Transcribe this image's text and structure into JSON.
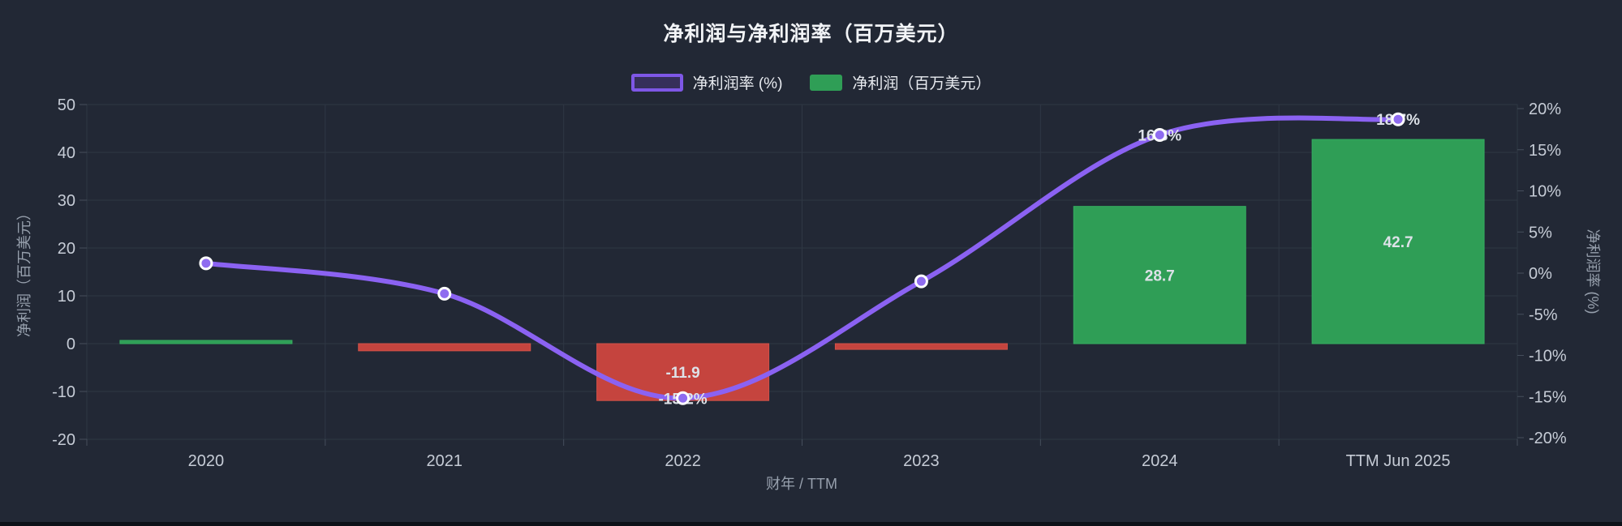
{
  "title": "净利润与净利润率（百万美元）",
  "legend": {
    "line_label": "净利润率 (%)",
    "bar_label": "净利润（百万美元）"
  },
  "colors": {
    "background": "#222835",
    "line": "#8b62f2",
    "line_marker_fill": "#8f6cf0",
    "bar_positive": "#2f9e56",
    "bar_negative": "#c5443e",
    "grid": "#2f3744",
    "tick_text": "#c6ccd6",
    "dim_text": "#97a0ad",
    "label_text": "#dde2e8"
  },
  "chart_data": {
    "type": "combo",
    "categories": [
      "2020",
      "2021",
      "2022",
      "2023",
      "2024",
      "TTM Jun 2025"
    ],
    "x_axis": {
      "name": "财年 / TTM"
    },
    "left_axis": {
      "name": "净利润（百万美元）",
      "min": -20,
      "max": 50,
      "ticks": [
        50,
        40,
        30,
        20,
        10,
        0,
        -10,
        -20
      ]
    },
    "right_axis": {
      "name": "净利润率 (%)",
      "min": -20,
      "max": 20,
      "ticks": [
        20,
        15,
        10,
        5,
        0,
        -5,
        -10,
        -15,
        -20
      ],
      "tick_suffix": "%"
    },
    "grid": true,
    "legend_position": "top",
    "series": [
      {
        "name": "净利润（百万美元）",
        "type": "bar",
        "axis": "left",
        "values": [
          0.5,
          -1.5,
          -11.9,
          -1.2,
          28.7,
          42.7
        ],
        "labels": [
          "",
          "",
          "-11.9",
          "",
          "28.7",
          "42.7"
        ]
      },
      {
        "name": "净利润率 (%)",
        "type": "line",
        "axis": "right",
        "values": [
          1.2,
          -2.5,
          -15.2,
          -1.0,
          16.8,
          18.7
        ],
        "labels": [
          "",
          "",
          "-15.2%",
          "",
          "16.8%",
          "18.7%"
        ]
      }
    ]
  }
}
